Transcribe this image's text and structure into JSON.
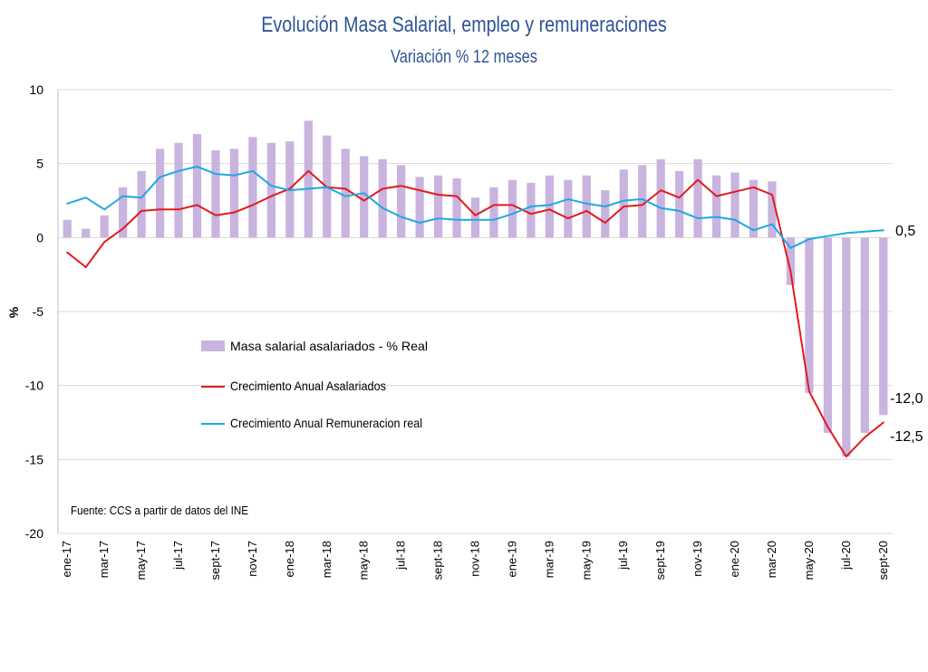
{
  "chart_data": {
    "type": "bar",
    "title": "Evolución Masa Salarial, empleo y remuneraciones",
    "subtitle": "Variación % 12 meses",
    "ylabel": "%",
    "ylim": [
      -20,
      10
    ],
    "yticks": [
      10,
      5,
      0,
      -5,
      -10,
      -15,
      -20
    ],
    "grid": true,
    "legend_position": "center-left",
    "source_note": "Fuente: CCS a partir de datos del INE",
    "x_tick_labels": [
      "ene-17",
      "mar-17",
      "may-17",
      "jul-17",
      "sept-17",
      "nov-17",
      "ene-18",
      "mar-18",
      "may-18",
      "jul-18",
      "sept-18",
      "nov-18",
      "ene-19",
      "mar-19",
      "may-19",
      "jul-19",
      "sept-19",
      "nov-19",
      "ene-20",
      "mar-20",
      "may-20",
      "jul-20",
      "sept-20"
    ],
    "series": [
      {
        "name": "Masa salarial asalariados - % Real",
        "type": "bar",
        "color": "#C9B3DF",
        "values": [
          1.2,
          0.6,
          1.5,
          3.4,
          4.5,
          6.0,
          6.4,
          7.0,
          5.9,
          6.0,
          6.8,
          6.4,
          6.5,
          7.9,
          6.9,
          6.0,
          5.5,
          5.3,
          4.9,
          4.1,
          4.2,
          4.0,
          2.7,
          3.4,
          3.9,
          3.7,
          4.2,
          3.9,
          4.2,
          3.2,
          4.6,
          4.9,
          5.3,
          4.5,
          5.3,
          4.2,
          4.4,
          3.9,
          3.8,
          -3.2,
          -10.5,
          -13.2,
          -14.8,
          -13.2,
          -12.0
        ]
      },
      {
        "name": "Crecimiento Anual Asalariados",
        "type": "line",
        "color": "#E31A1C",
        "values": [
          -1.0,
          -2.0,
          -0.3,
          0.6,
          1.8,
          1.9,
          1.9,
          2.2,
          1.5,
          1.7,
          2.2,
          2.8,
          3.3,
          4.5,
          3.4,
          3.3,
          2.5,
          3.3,
          3.5,
          3.2,
          2.9,
          2.8,
          1.5,
          2.2,
          2.2,
          1.6,
          1.9,
          1.3,
          1.8,
          1.0,
          2.1,
          2.2,
          3.2,
          2.7,
          3.9,
          2.8,
          3.1,
          3.4,
          2.9,
          -2.3,
          -10.4,
          -12.8,
          -14.8,
          -13.5,
          -12.5
        ]
      },
      {
        "name": "Crecimiento Anual Remuneracion real",
        "type": "line",
        "color": "#1FA9E1",
        "values": [
          2.3,
          2.7,
          1.9,
          2.8,
          2.7,
          4.1,
          4.5,
          4.8,
          4.3,
          4.2,
          4.5,
          3.5,
          3.2,
          3.3,
          3.4,
          2.8,
          3.0,
          2.0,
          1.4,
          1.0,
          1.3,
          1.2,
          1.2,
          1.2,
          1.6,
          2.1,
          2.2,
          2.6,
          2.3,
          2.1,
          2.5,
          2.6,
          2.0,
          1.8,
          1.3,
          1.4,
          1.2,
          0.5,
          0.9,
          -0.7,
          -0.1,
          0.1,
          0.3,
          0.4,
          0.5
        ]
      }
    ],
    "end_labels": [
      "0,5",
      "-12,0",
      "-12,5"
    ]
  }
}
